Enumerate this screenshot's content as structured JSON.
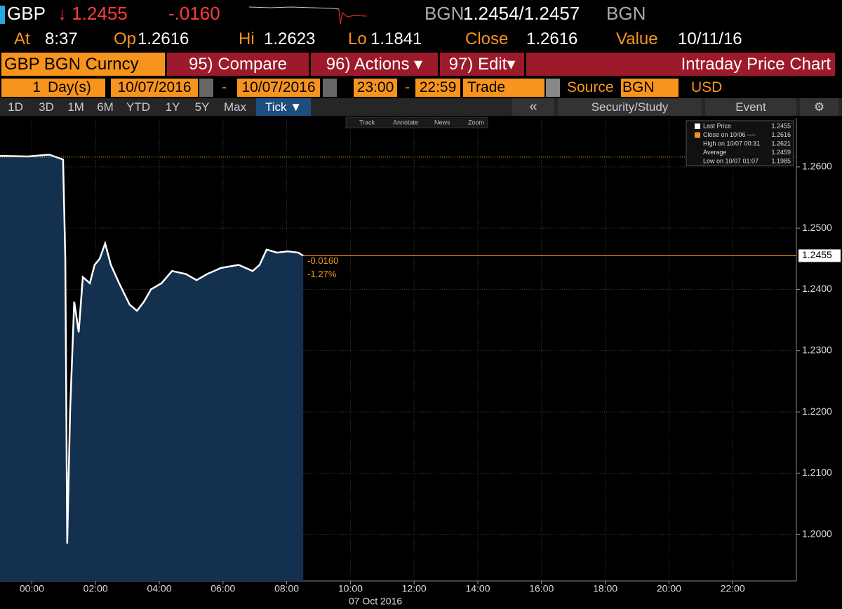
{
  "header": {
    "ticker": "GBP",
    "price": "↓ 1.2455",
    "change": "-.0160",
    "bid_source": "BGN",
    "bid_ask": "1.2454/1.2457",
    "ask_source": "BGN"
  },
  "quote": [
    {
      "label": "At",
      "value": "8:37"
    },
    {
      "label": "Op",
      "value": "1.2616"
    },
    {
      "label": "Hi",
      "value": "1.2623"
    },
    {
      "label": "Lo",
      "value": "1.1841"
    },
    {
      "label": "Close",
      "value": "1.2616"
    },
    {
      "label": "Value",
      "value": "10/11/16"
    }
  ],
  "toolbar": {
    "security": "GBP BGN Curncy",
    "buttons": [
      "95) Compare",
      "96) Actions ▾",
      "97) Edit▾"
    ],
    "title": "Intraday Price Chart"
  },
  "inputs": {
    "period": "1",
    "period_unit": "Day(s)",
    "start_date": "10/07/2016",
    "sep": "-",
    "end_date": "10/07/2016",
    "start_time": "23:00",
    "end_time": "22:59",
    "field": "Trade",
    "source_label": "Source",
    "source": "BGN",
    "currency": "USD"
  },
  "tabs": [
    "1D",
    "3D",
    "1M",
    "6M",
    "YTD",
    "1Y",
    "5Y",
    "Max",
    "Tick ▼"
  ],
  "selected_tab": 8,
  "right_tools": [
    "«",
    "Security/Study",
    "Event"
  ],
  "chart_data": {
    "type": "line",
    "x": [
      -1,
      -0.12,
      0.54,
      0.98,
      1.05,
      1.11,
      1.2,
      1.33,
      1.47,
      1.6,
      1.82,
      1.97,
      2.13,
      2.3,
      2.48,
      2.74,
      3.07,
      3.3,
      3.52,
      3.74,
      4.07,
      4.4,
      4.84,
      5.17,
      5.5,
      5.94,
      6.49,
      6.93,
      7.15,
      7.37,
      7.7,
      8.03,
      8.36,
      8.52
    ],
    "series": [
      {
        "color": "#ffffff",
        "fill": "#14304f",
        "values": [
          1.2618,
          1.2617,
          1.262,
          1.2612,
          1.245,
          1.1985,
          1.22,
          1.238,
          1.233,
          1.242,
          1.241,
          1.244,
          1.245,
          1.2475,
          1.244,
          1.241,
          1.2375,
          1.2365,
          1.238,
          1.24,
          1.241,
          1.243,
          1.2425,
          1.2415,
          1.2425,
          1.2435,
          1.244,
          1.243,
          1.244,
          1.2465,
          1.246,
          1.2462,
          1.246,
          1.2455
        ]
      }
    ],
    "xlim": [
      -1,
      24
    ],
    "xticks": [
      {
        "value": 0,
        "label": "00:00"
      },
      {
        "value": 2,
        "label": "02:00"
      },
      {
        "value": 4,
        "label": "04:00"
      },
      {
        "value": 6,
        "label": "06:00"
      },
      {
        "value": 8,
        "label": "08:00"
      },
      {
        "value": 10,
        "label": "10:00"
      },
      {
        "value": 12,
        "label": "12:00"
      },
      {
        "value": 14,
        "label": "14:00"
      },
      {
        "value": 16,
        "label": "16:00"
      },
      {
        "value": 18,
        "label": "18:00"
      },
      {
        "value": 20,
        "label": "20:00"
      },
      {
        "value": 22,
        "label": "22:00"
      }
    ],
    "x_label": "07 Oct 2016",
    "ylim": [
      1.1924,
      1.268
    ],
    "yticks": [
      {
        "value": 1.2,
        "label": "1.2000"
      },
      {
        "value": 1.21,
        "label": "1.2100"
      },
      {
        "value": 1.22,
        "label": "1.2200"
      },
      {
        "value": 1.23,
        "label": "1.2300"
      },
      {
        "value": 1.24,
        "label": "1.2400"
      },
      {
        "value": 1.25,
        "label": "1.2500"
      },
      {
        "value": 1.26,
        "label": "1.2600"
      }
    ],
    "grid": true,
    "close_line": 1.2616,
    "last_price": {
      "value": 1.2455,
      "label": "1.2455"
    },
    "annotations": [
      "-0.0160",
      "-1.27%"
    ],
    "chart_tools": [
      "Track",
      "Annotate",
      "News",
      "Zoom"
    ],
    "legend": [
      [
        "Last Price",
        "1.2455"
      ],
      [
        "Close on 10/06 ----",
        "1.2616"
      ],
      [
        "High on 10/07 00:31",
        "1.2621"
      ],
      [
        "Average",
        "1.2459"
      ],
      [
        "Low on 10/07 01:07",
        "1.1985"
      ]
    ]
  }
}
